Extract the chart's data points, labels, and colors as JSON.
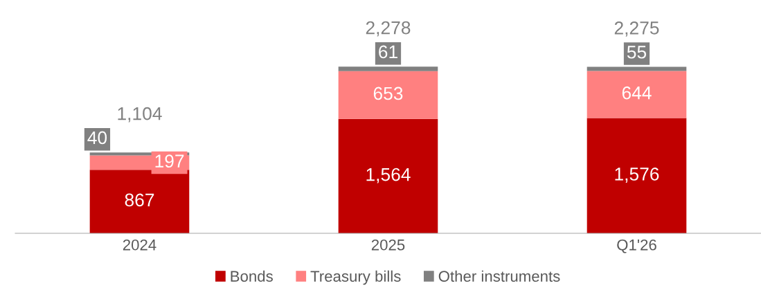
{
  "chart_data": {
    "type": "bar",
    "stacked": true,
    "categories": [
      "2024",
      "2025",
      "Q1'26"
    ],
    "series": [
      {
        "name": "Bonds",
        "color": "#c00000",
        "values": [
          867,
          1564,
          1576
        ],
        "value_labels": [
          "867",
          "1,564",
          "1,576"
        ]
      },
      {
        "name": "Treasury bills",
        "color": "#ff8080",
        "values": [
          197,
          653,
          644
        ],
        "value_labels": [
          "197",
          "653",
          "644"
        ]
      },
      {
        "name": "Other instruments",
        "color": "#808080",
        "values": [
          40,
          61,
          55
        ],
        "value_labels": [
          "40",
          "61",
          "55"
        ]
      }
    ],
    "totals": [
      "1,104",
      "2,278",
      "2,275"
    ],
    "legend": "bottom",
    "grid": false
  }
}
